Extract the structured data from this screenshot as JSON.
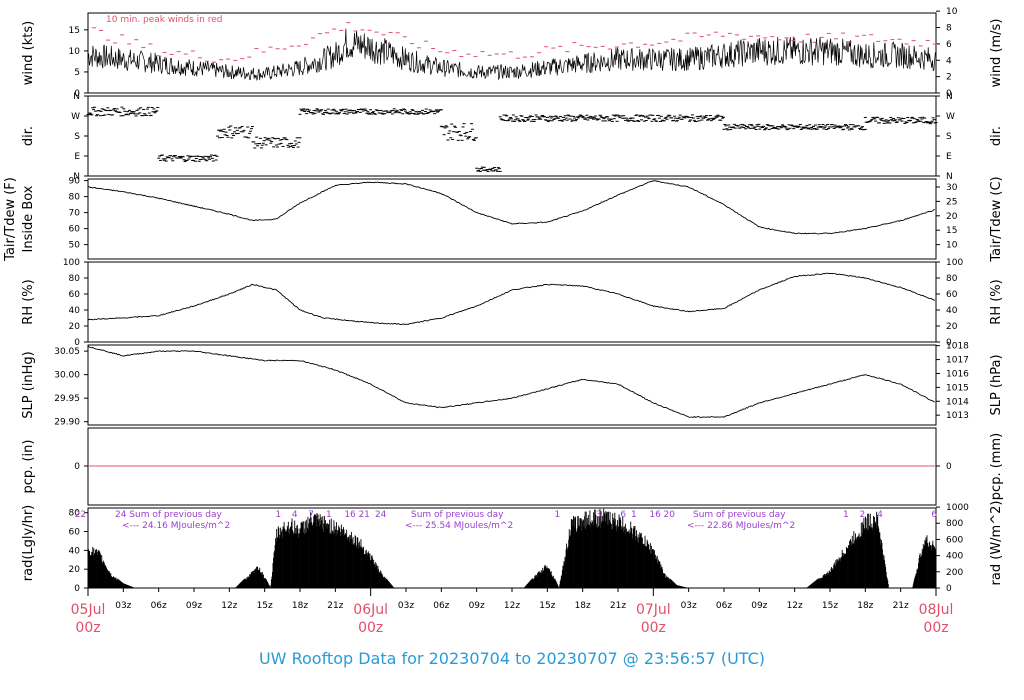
{
  "footer": {
    "title": "UW Rooftop Data for 20230704  to  20230707 @ 23:56:57  (UTC)"
  },
  "x_axis": {
    "hour_ticks": [
      "03z",
      "06z",
      "09z",
      "12z",
      "15z",
      "18z",
      "21z",
      "03z",
      "06z",
      "09z",
      "12z",
      "15z",
      "18z",
      "21z",
      "03z",
      "06z",
      "09z",
      "12z",
      "15z",
      "18z",
      "21z"
    ],
    "day_labels": [
      {
        "date": "05Jul",
        "time": "00z"
      },
      {
        "date": "06Jul",
        "time": "00z"
      },
      {
        "date": "07Jul",
        "time": "00z"
      },
      {
        "date": "08Jul",
        "time": "00z"
      }
    ]
  },
  "panels": {
    "wind": {
      "ylabel_left": "wind (kts)",
      "ylabel_right": "wind (m/s)",
      "left_ticks": [
        "0",
        "5",
        "10",
        "15"
      ],
      "right_ticks": [
        "0",
        "2",
        "4",
        "6",
        "8",
        "10"
      ],
      "note": "10 min. peak winds in red"
    },
    "dir": {
      "ylabel_left": "dir.",
      "ylabel_right": "dir.",
      "left_ticks": [
        "N",
        "E",
        "S",
        "W",
        "N"
      ],
      "right_ticks": [
        "N",
        "E",
        "S",
        "W",
        "N"
      ]
    },
    "temp": {
      "ylabel_left_1": "Tair/Tdew (F)",
      "ylabel_left_2": "Inside Box",
      "ylabel_right": "Tair/Tdew (C)",
      "left_ticks": [
        "50",
        "60",
        "70",
        "80",
        "90"
      ],
      "right_ticks": [
        "10",
        "15",
        "20",
        "25",
        "30"
      ]
    },
    "rh": {
      "ylabel_left": "RH (%)",
      "ylabel_right": "RH (%)",
      "left_ticks": [
        "0",
        "20",
        "40",
        "60",
        "80",
        "100"
      ],
      "right_ticks": [
        "0",
        "20",
        "40",
        "60",
        "80",
        "100"
      ]
    },
    "slp": {
      "ylabel_left": "SLP (inHg)",
      "ylabel_right": "SLP (hPa)",
      "left_ticks": [
        "29.90",
        "29.95",
        "30.00",
        "30.05"
      ],
      "right_ticks": [
        "1013",
        "1014",
        "1015",
        "1016",
        "1017",
        "1018"
      ]
    },
    "pcp": {
      "ylabel_left": "pcp. (in)",
      "ylabel_right": "pcp. (mm)",
      "left_ticks": [
        "0"
      ],
      "right_ticks": [
        "0"
      ]
    },
    "rad": {
      "ylabel_left": "rad(Lgly/hr)",
      "ylabel_right": "rad (W/m^2)",
      "left_ticks": [
        "0",
        "20",
        "40",
        "60",
        "80"
      ],
      "right_ticks": [
        "0",
        "200",
        "400",
        "600",
        "800",
        "1000"
      ],
      "sums": [
        {
          "title": "24 Sum of previous day",
          "value": "<--- 24.16 MJoules/m^2"
        },
        {
          "title": "Sum of previous day",
          "value": "<--- 25.54 MJoules/m^2"
        },
        {
          "title": "Sum of previous day",
          "value": "<--- 22.86 MJoules/m^2"
        }
      ],
      "hour_markers": [
        {
          "hr": -1.5,
          "t": "22"
        },
        {
          "hr": 15.3,
          "t": "1"
        },
        {
          "hr": 16.7,
          "t": "4"
        },
        {
          "hr": 18.1,
          "t": "7"
        },
        {
          "hr": 19.6,
          "t": "1"
        },
        {
          "hr": 21.4,
          "t": "16"
        },
        {
          "hr": 22.6,
          "t": "21"
        },
        {
          "hr": 24.0,
          "t": "24"
        },
        {
          "hr": 39.0,
          "t": "1"
        },
        {
          "hr": 42.5,
          "t": "3"
        },
        {
          "hr": 44.6,
          "t": "6"
        },
        {
          "hr": 45.5,
          "t": "1"
        },
        {
          "hr": 47.3,
          "t": "16"
        },
        {
          "hr": 48.5,
          "t": "20"
        },
        {
          "hr": 63.5,
          "t": "1"
        },
        {
          "hr": 64.9,
          "t": "2"
        },
        {
          "hr": 66.4,
          "t": "4"
        },
        {
          "hr": 71.0,
          "t": "6"
        }
      ]
    }
  },
  "chart_data": [
    {
      "type": "line",
      "title": "wind",
      "ylabel": "wind (kts)",
      "ylim": [
        0,
        19
      ],
      "x_unit": "hours since 05Jul 00z",
      "series": [
        {
          "name": "10 min. peak winds in red",
          "color": "#e0506a",
          "x": [
            0,
            6,
            12,
            18,
            22,
            24,
            30,
            36,
            42,
            48,
            54,
            60,
            66,
            72
          ],
          "values": [
            15,
            10,
            8,
            12,
            16,
            15,
            10,
            9,
            11,
            12,
            14,
            13,
            13,
            12
          ]
        }
      ],
      "series_mean": {
        "x": [
          0,
          3,
          6,
          9,
          12,
          15,
          18,
          21,
          22,
          24,
          27,
          30,
          33,
          36,
          39,
          42,
          45,
          48,
          51,
          54,
          57,
          60,
          63,
          66,
          69,
          72
        ],
        "values": [
          9,
          8,
          7,
          6,
          5,
          4.5,
          6,
          9,
          12,
          11,
          8,
          6,
          5,
          5,
          6,
          7,
          8,
          8,
          8,
          9,
          10,
          10,
          10,
          9,
          9,
          8
        ]
      }
    },
    {
      "type": "scatter",
      "title": "dir.",
      "ylabel": "dir.",
      "yticks": [
        "N",
        "E",
        "S",
        "W",
        "N"
      ]
    },
    {
      "type": "line",
      "title": "Tair/Tdew",
      "ylabel": "Tair/Tdew (F)",
      "ylim": [
        41,
        91
      ],
      "x": [
        0,
        3,
        6,
        9,
        12,
        14,
        16,
        18,
        21,
        24,
        27,
        30,
        33,
        36,
        39,
        42,
        45,
        48,
        51,
        54,
        57,
        60,
        63,
        66,
        69,
        72
      ],
      "values": [
        86,
        83,
        79,
        74,
        69,
        65,
        66,
        76,
        87,
        89,
        88,
        82,
        70,
        63,
        64,
        71,
        81,
        90,
        86,
        75,
        61,
        57,
        57,
        60,
        65,
        72
      ]
    },
    {
      "type": "line",
      "title": "RH",
      "ylabel": "RH (%)",
      "ylim": [
        0,
        100
      ],
      "x": [
        0,
        3,
        6,
        9,
        12,
        14,
        16,
        18,
        20,
        24,
        27,
        30,
        33,
        36,
        39,
        42,
        45,
        48,
        51,
        54,
        57,
        60,
        63,
        66,
        69,
        72
      ],
      "values": [
        28,
        30,
        33,
        45,
        60,
        72,
        65,
        40,
        30,
        24,
        22,
        30,
        45,
        65,
        72,
        70,
        60,
        45,
        38,
        42,
        65,
        82,
        86,
        80,
        68,
        52
      ]
    },
    {
      "type": "line",
      "title": "SLP",
      "ylabel": "SLP (inHg)",
      "ylim": [
        29.893,
        30.063
      ],
      "x": [
        0,
        3,
        6,
        9,
        12,
        15,
        18,
        21,
        24,
        27,
        30,
        33,
        36,
        39,
        42,
        45,
        48,
        51,
        54,
        57,
        60,
        63,
        66,
        69,
        72
      ],
      "values": [
        30.06,
        30.04,
        30.05,
        30.05,
        30.04,
        30.03,
        30.03,
        30.01,
        29.98,
        29.94,
        29.93,
        29.94,
        29.95,
        29.97,
        29.99,
        29.98,
        29.94,
        29.91,
        29.91,
        29.94,
        29.96,
        29.98,
        30.0,
        29.98,
        29.94
      ]
    },
    {
      "type": "line",
      "title": "pcp.",
      "ylabel": "pcp. (in)",
      "x": [
        0,
        72
      ],
      "values": [
        0,
        0
      ]
    },
    {
      "type": "area",
      "title": "rad",
      "ylabel": "rad(Lgly/hr)",
      "ylim": [
        0,
        85
      ],
      "x": [
        0,
        1,
        2,
        3,
        4,
        5,
        12.5,
        14.5,
        15.5,
        16,
        17,
        18,
        19,
        20,
        21,
        22,
        23,
        24,
        25,
        26,
        37,
        39,
        40,
        41,
        42,
        43,
        44,
        45,
        46,
        47,
        48,
        49,
        50,
        51,
        61,
        63,
        64,
        65,
        66,
        67,
        68,
        69,
        70,
        71,
        72
      ],
      "values": [
        47,
        40,
        15,
        5,
        0,
        0,
        0,
        25,
        0,
        65,
        76,
        70,
        82,
        78,
        73,
        66,
        55,
        38,
        15,
        0,
        0,
        28,
        0,
        75,
        82,
        85,
        84,
        80,
        72,
        60,
        45,
        15,
        3,
        0,
        0,
        20,
        40,
        60,
        78,
        85,
        0,
        0,
        0,
        58,
        50
      ]
    }
  ]
}
